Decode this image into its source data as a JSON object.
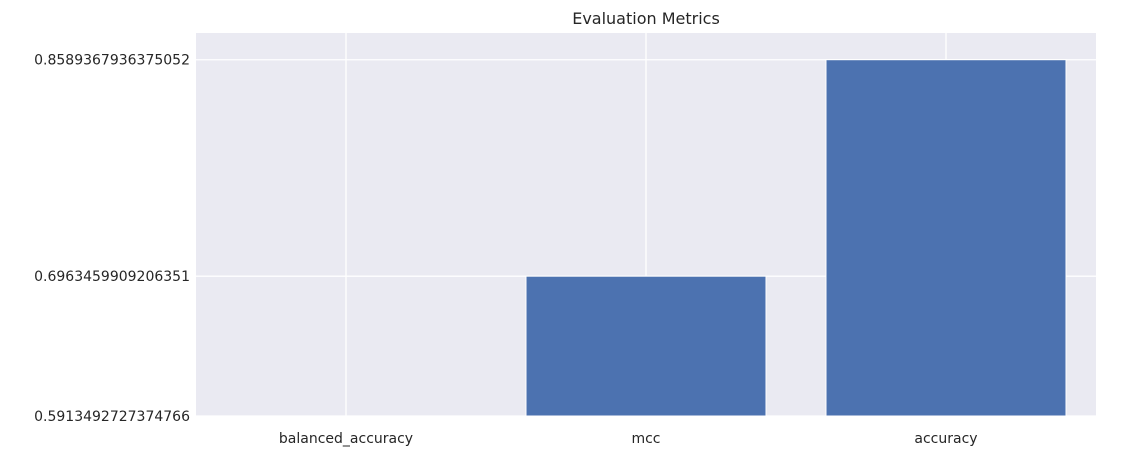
{
  "chart_data": {
    "type": "bar",
    "title": "Evaluation Metrics",
    "xlabel": "",
    "ylabel": "",
    "categories": [
      "balanced_accuracy",
      "mcc",
      "accuracy"
    ],
    "values": [
      0.5913492727374766,
      0.6963459909206351,
      0.8589367936375052
    ],
    "yticks": [
      0.5913492727374766,
      0.6963459909206351,
      0.8589367936375052
    ],
    "ytick_labels": [
      "0.5913492727374766",
      "0.6963459909206351",
      "0.8589367936375052"
    ],
    "ylim": [
      0.5913492727374766,
      0.879
    ],
    "grid": true,
    "colors": {
      "bar": "#4c72b0",
      "background": "#eaeaf2",
      "grid": "#ffffff",
      "text": "#262626"
    }
  }
}
